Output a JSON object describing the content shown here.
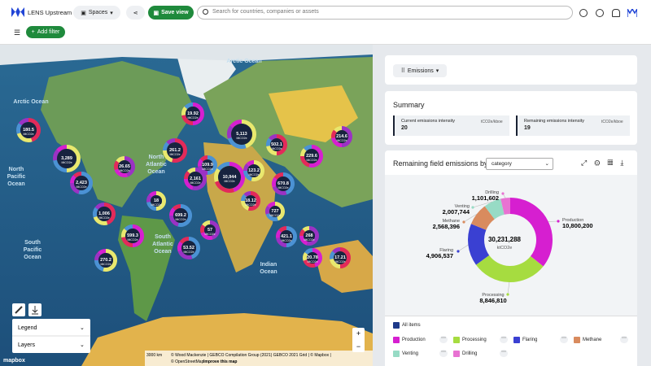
{
  "header": {
    "app_name": "LENS Upstream",
    "spaces": "Spaces",
    "save_view": "Save view",
    "search_placeholder": "Search for countries, companies or assets",
    "add_filter": "Add filter"
  },
  "map": {
    "cluster_unit": "MtCO2e",
    "clusters": [
      "180.5",
      "3,289",
      "2,423",
      "26.65",
      "19.92",
      "261.2",
      "5,113",
      "109.9",
      "2,161",
      "10,944",
      "502.1",
      "123.2",
      "670.8",
      "214.6",
      "229.6",
      "1,006",
      "18",
      "699.2",
      "57",
      "599.3",
      "18.12",
      "727",
      "421.1",
      "268",
      "20.78",
      "17.21",
      "270.2",
      "53.52"
    ],
    "oceans": [
      [
        "Arctic Ocean"
      ],
      [
        "Arctic Ocean"
      ],
      [
        "North",
        "Pacific",
        "Ocean"
      ],
      [
        "North",
        "Atlantic",
        "Ocean"
      ],
      [
        "South",
        "Pacific",
        "Ocean"
      ],
      [
        "South",
        "Atlantic",
        "Ocean"
      ],
      [
        "Indian",
        "Ocean"
      ]
    ],
    "legend": "Legend",
    "layers": "Layers",
    "scale": "3000 km",
    "attribution": "© Wood Mackenzie | GEBCO Compilation Group (2021) GEBCO 2021 Grid | © Mapbox |",
    "attribution2": "© OpenStreetMap",
    "improve": "Improve this map",
    "logo": "mapbox"
  },
  "panel": {
    "metric": "Emissions",
    "summary": {
      "title": "Summary",
      "items": [
        {
          "label": "Current emissions intensity",
          "unit": "tCO2e/kboe",
          "value": 20
        },
        {
          "label": "Remaining emissions intensity",
          "unit": "tCO2e/kboe",
          "value": 19
        }
      ]
    },
    "breakdown_title": "Remaining field emissions by",
    "breakdown_select": "category",
    "all_items": "All items"
  },
  "emissions_chart": {
    "type": "pie",
    "categories": [
      "Production",
      "Processing",
      "Flaring",
      "Methane",
      "Venting",
      "Drilling"
    ],
    "values": [
      10800200,
      8846810,
      4906537,
      2568396,
      2007744,
      1101602
    ],
    "value_labels": [
      "10,800,200",
      "8,846,810",
      "4,906,537",
      "2,568,396",
      "2,007,744",
      "1,101,602"
    ],
    "colors": [
      "#d61fd0",
      "#a6dc40",
      "#3a40d2",
      "#d98b5e",
      "#97dbc5",
      "#e872d2"
    ],
    "total": "30,231,288",
    "unit": "ktCO2e"
  }
}
